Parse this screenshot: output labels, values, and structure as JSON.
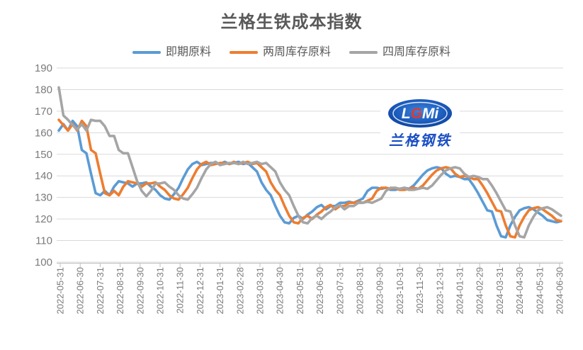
{
  "title": "兰格生铁成本指数",
  "legend": {
    "position": "top-center",
    "items": [
      {
        "label": "即期原料",
        "color": "#5B9BD5"
      },
      {
        "label": "两周库存原料",
        "color": "#ED7D31"
      },
      {
        "label": "四周库存原料",
        "color": "#A5A5A5"
      }
    ]
  },
  "logo": {
    "lgmi": [
      "L",
      "G",
      "Mi"
    ],
    "sub": "兰格钢铁"
  },
  "chart_data": {
    "type": "line",
    "title": "兰格生铁成本指数",
    "x_frequency": "weekly",
    "grid": "horizontal",
    "legend_position": "top-center",
    "ylim": [
      100,
      190
    ],
    "y_ticks": [
      100,
      110,
      120,
      130,
      140,
      150,
      160,
      170,
      180,
      190
    ],
    "x_tick_labels": [
      "2022-05-31",
      "2022-06-30",
      "2022-07-31",
      "2022-08-31",
      "2022-09-30",
      "2022-10-31",
      "2022-11-30",
      "2022-12-31",
      "2023-01-31",
      "2023-02-28",
      "2023-03-31",
      "2023-04-30",
      "2023-05-31",
      "2023-06-30",
      "2023-07-31",
      "2023-08-31",
      "2023-09-30",
      "2023-10-31",
      "2023-11-30",
      "2023-12-31",
      "2024-01-31",
      "2024-02-29",
      "2024-03-31",
      "2024-04-30",
      "2024-05-31",
      "2024-06-30"
    ],
    "series": [
      {
        "name": "即期原料",
        "color": "#5B9BD5",
        "values": [
          161,
          164,
          161,
          165.5,
          163,
          152,
          150.5,
          141,
          132,
          131,
          133,
          131,
          135,
          137.5,
          137,
          136.5,
          135,
          136.5,
          136.5,
          137,
          135,
          133.5,
          131,
          129.5,
          129,
          131.5,
          134.5,
          139,
          143,
          145.5,
          146.5,
          145,
          145.5,
          146,
          146,
          145.5,
          146.5,
          145.5,
          146,
          146.5,
          145.5,
          146,
          144,
          142,
          137,
          133.5,
          131,
          126,
          121.5,
          118.5,
          118,
          120.5,
          121.5,
          120,
          122,
          123.5,
          125.5,
          126.5,
          124.5,
          126,
          126,
          127.5,
          127.5,
          128,
          127.5,
          128.5,
          129.5,
          133,
          134.5,
          134.5,
          134,
          134.5,
          133.5,
          133.5,
          134,
          134.5,
          134,
          135.5,
          138,
          140.5,
          142.5,
          143.5,
          144,
          143.5,
          141,
          139.5,
          140,
          139.5,
          138.5,
          138.5,
          135.5,
          132,
          128,
          124,
          123.5,
          117,
          112,
          111.5,
          117,
          121,
          124,
          125,
          125.5,
          124.5,
          123,
          121.5,
          119.5,
          119,
          118.5,
          119
        ]
      },
      {
        "name": "两周库存原料",
        "color": "#ED7D31",
        "values": [
          166,
          163.5,
          161,
          164,
          161,
          165.5,
          163,
          152,
          150.5,
          141,
          132,
          131,
          133,
          131,
          135,
          137.5,
          137,
          136.5,
          135,
          136.5,
          136.5,
          137,
          135,
          133.5,
          131,
          129.5,
          129,
          131.5,
          134.5,
          139,
          143,
          145.5,
          146.5,
          145,
          145.5,
          146,
          146,
          145.5,
          146.5,
          145.5,
          146,
          146.5,
          145.5,
          146,
          144,
          142,
          137,
          133.5,
          131,
          126,
          121.5,
          118.5,
          118,
          120.5,
          121.5,
          120,
          122,
          123.5,
          125.5,
          126.5,
          124.5,
          126,
          126,
          127.5,
          127.5,
          128,
          127.5,
          128.5,
          129.5,
          133,
          134.5,
          134.5,
          134,
          134.5,
          133.5,
          133.5,
          134,
          134.5,
          134,
          135.5,
          138,
          140.5,
          142.5,
          143.5,
          144,
          143.5,
          141,
          139.5,
          140,
          139.5,
          138.5,
          138.5,
          135.5,
          132,
          128,
          124,
          123.5,
          117,
          112,
          111.5,
          117,
          121,
          124,
          125,
          125.5,
          124.5,
          123,
          121.5,
          119.5,
          119
        ]
      },
      {
        "name": "四周库存原料",
        "color": "#A5A5A5",
        "values": [
          181,
          168,
          166,
          163.5,
          161.5,
          164,
          161,
          166,
          165.5,
          165.5,
          163,
          158.5,
          158.5,
          152,
          150.5,
          150.5,
          144,
          137.5,
          133,
          130.5,
          133,
          136.5,
          136.5,
          137,
          135,
          133.5,
          131,
          129.5,
          129,
          131.5,
          134.5,
          139,
          143,
          145.5,
          146.5,
          145,
          145.5,
          146,
          146,
          145.5,
          146.5,
          145.5,
          146,
          146.5,
          145.5,
          146,
          144,
          142,
          137,
          133.5,
          131,
          126,
          121.5,
          118.5,
          118,
          120.5,
          121.5,
          120,
          122,
          123.5,
          125.5,
          126.5,
          124.5,
          126,
          126,
          127.5,
          127.5,
          128,
          127.5,
          128.5,
          129.5,
          133,
          134.5,
          134.5,
          134,
          134.5,
          133.5,
          133.5,
          134,
          134.5,
          134,
          135.5,
          138,
          140.5,
          142.5,
          143.5,
          144,
          143.5,
          141,
          139.5,
          140,
          139.5,
          138.5,
          138.5,
          135.5,
          132,
          128,
          124,
          123.5,
          117,
          112,
          111.5,
          117,
          121,
          124,
          125,
          125.5,
          124.5,
          123,
          121.5
        ]
      }
    ]
  }
}
